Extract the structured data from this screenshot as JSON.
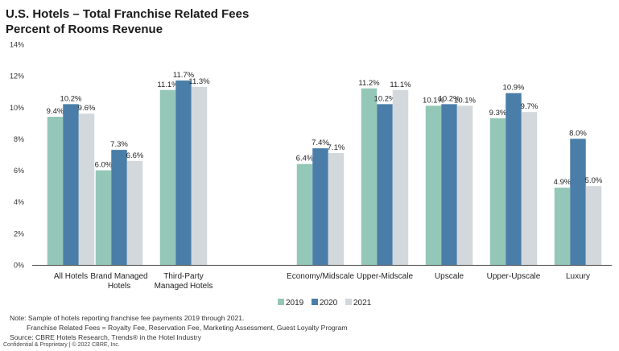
{
  "title_line1": "U.S. Hotels – Total Franchise Related Fees",
  "title_line2": "Percent of Rooms Revenue",
  "chart_data": {
    "type": "bar",
    "title": "U.S. Hotels – Total Franchise Related Fees",
    "subtitle": "Percent of Rooms Revenue",
    "categories": [
      [
        "All Hotels"
      ],
      [
        "Brand Managed",
        "Hotels"
      ],
      [
        "Third-Party",
        "Managed Hotels"
      ],
      [
        "Economy/Midscale"
      ],
      [
        "Upper-Midscale"
      ],
      [
        "Upscale"
      ],
      [
        "Upper-Upscale"
      ],
      [
        "Luxury"
      ]
    ],
    "series": [
      {
        "name": "2019",
        "color": "#95c7b8",
        "values": [
          9.4,
          6.0,
          11.1,
          6.4,
          11.2,
          10.1,
          9.3,
          4.9
        ]
      },
      {
        "name": "2020",
        "color": "#4a7ea8",
        "values": [
          10.2,
          7.3,
          11.7,
          7.4,
          10.2,
          10.2,
          10.9,
          8.0
        ]
      },
      {
        "name": "2021",
        "color": "#d3d8dc",
        "values": [
          9.6,
          6.6,
          11.3,
          7.1,
          11.1,
          10.1,
          9.7,
          5.0
        ]
      }
    ],
    "ylim": [
      0,
      14
    ],
    "yticks": [
      0,
      2,
      4,
      6,
      8,
      10,
      12,
      14
    ],
    "ytick_suffix": "%",
    "xlabel": "",
    "ylabel": "",
    "grid": false,
    "legend": "bottom-center"
  },
  "notes": {
    "line1": "Note:  Sample of hotels reporting franchise fee payments 2019 through 2021.",
    "line2": "Franchise Related Fees = Royalty Fee, Reservation Fee, Marketing Assessment, Guest Loyalty Program",
    "line3": "Source: CBRE Hotels Research, Trends® in the Hotel Industry"
  },
  "copyright": "Confidential & Proprietary | © 2022 CBRE, Inc."
}
